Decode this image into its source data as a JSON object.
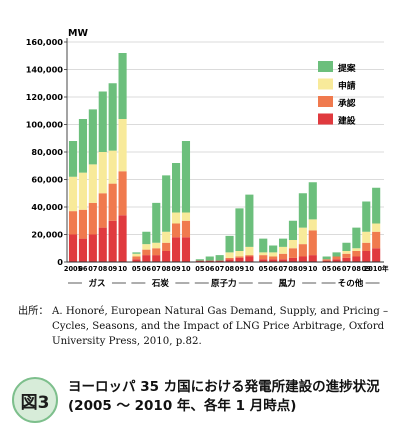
{
  "chart_data": {
    "type": "bar",
    "stacked": true,
    "ylabel": "MW",
    "ylim": [
      0,
      160000
    ],
    "yticks": [
      "0",
      "20,000",
      "40,000",
      "60,000",
      "80,000",
      "100,000",
      "120,000",
      "140,000",
      "160,000"
    ],
    "legend_position": "top-right",
    "groups": [
      {
        "name": "ガス",
        "years": [
          "2005",
          "06",
          "07",
          "08",
          "09",
          "10"
        ]
      },
      {
        "name": "石炭",
        "years": [
          "05",
          "06",
          "07",
          "08",
          "09",
          "10"
        ]
      },
      {
        "name": "原子力",
        "years": [
          "05",
          "06",
          "07",
          "08",
          "09",
          "10"
        ]
      },
      {
        "name": "風力",
        "years": [
          "05",
          "06",
          "07",
          "08",
          "09",
          "10"
        ]
      },
      {
        "name": "その他",
        "years": [
          "05",
          "06",
          "07",
          "08",
          "09",
          "2010年"
        ]
      }
    ],
    "series": [
      {
        "name": "建設",
        "color": "#e03a3e",
        "values": [
          20000,
          17000,
          20000,
          25000,
          30000,
          34000,
          2000,
          5000,
          5000,
          8000,
          18000,
          18000,
          1000,
          1000,
          1000,
          2000,
          3000,
          4000,
          2000,
          2000,
          2000,
          3000,
          4000,
          5000,
          1000,
          2000,
          3000,
          4000,
          8000,
          10000
        ]
      },
      {
        "name": "承認",
        "color": "#f07a4e",
        "values": [
          17000,
          21000,
          23000,
          25000,
          27000,
          32000,
          2000,
          4000,
          5000,
          6000,
          10000,
          12000,
          0,
          0,
          0,
          1000,
          1000,
          1000,
          3000,
          2000,
          4000,
          7000,
          9000,
          18000,
          1000,
          2000,
          3000,
          4000,
          6000,
          12000
        ]
      },
      {
        "name": "申請",
        "color": "#f8ea9a",
        "values": [
          25000,
          27000,
          28000,
          30000,
          24000,
          38000,
          2000,
          4000,
          4000,
          8000,
          8000,
          6000,
          0,
          0,
          0,
          4000,
          4000,
          6000,
          2000,
          3000,
          5000,
          6000,
          12000,
          8000,
          0,
          0,
          2000,
          2000,
          8000,
          6000
        ]
      },
      {
        "name": "提案",
        "color": "#6cbf7c",
        "values": [
          26000,
          39000,
          40000,
          44000,
          49000,
          48000,
          1000,
          9000,
          29000,
          41000,
          36000,
          52000,
          1000,
          3000,
          4000,
          12000,
          31000,
          38000,
          10000,
          5000,
          6000,
          14000,
          25000,
          27000,
          2000,
          3000,
          6000,
          15000,
          22000,
          26000
        ]
      }
    ]
  },
  "source": {
    "label": "出所：",
    "text": "A. Honoré, European Natural Gas Demand, Supply, and Pricing – Cycles, Seasons, and the Impact of LNG Price Arbitrage, Oxford University Press, 2010, p.82."
  },
  "figure": {
    "badge": "図3",
    "title_line1": "ヨーロッパ 35 カ国における発電所建設の進捗状況",
    "title_line2": "(2005 ～ 2010 年、各年 1 月時点)"
  }
}
